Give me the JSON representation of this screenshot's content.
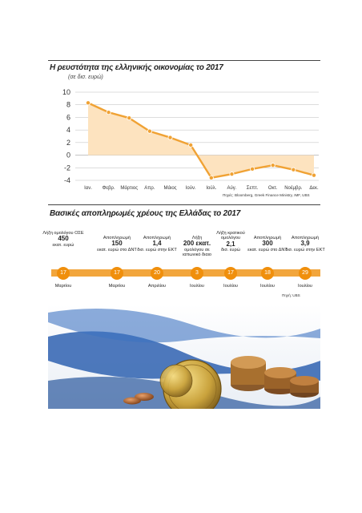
{
  "chart_data": [
    {
      "type": "area",
      "title": "Η ρευστότητα της ελληνικής οικονομίας το 2017",
      "unit": "(σε δισ. ευρώ)",
      "categories": [
        "Ιαν.",
        "Φεβρ.",
        "Μάρτιος",
        "Απρ.",
        "Μάιος",
        "Ιούν.",
        "Ιούλ.",
        "Αύγ.",
        "Σεπτ.",
        "Οκτ.",
        "Νοέμβρ.",
        "Δεκ."
      ],
      "values": [
        8.3,
        6.8,
        5.9,
        3.8,
        2.8,
        1.6,
        -3.6,
        -3.0,
        -2.2,
        -1.6,
        -2.3,
        -3.2
      ],
      "yticks": [
        "10",
        "8",
        "6",
        "4",
        "2",
        "0",
        "-2",
        "-4"
      ],
      "ylim": [
        -4,
        10
      ],
      "grid": true,
      "source": "Πηγές: Bloomberg, Greek Finance Ministry, IMF, UBS"
    },
    {
      "type": "timeline",
      "title": "Βασικές αποπληρωμές χρέους της Ελλάδας το 2017",
      "events": [
        {
          "text": "Λήξη ομολόγου ΟΣΕ",
          "amount": "450",
          "unit": "εκατ. ευρώ",
          "day": "17",
          "month": "Μαρτίου"
        },
        {
          "text": "Αποπληρωμή",
          "amount": "150",
          "unit": "εκατ. ευρώ στο ΔΝΤ",
          "day": "17",
          "month": "Μαρτίου"
        },
        {
          "text": "Αποπληρωμή",
          "amount": "1,4",
          "unit": "δισ. ευρώ στην ΕΚΤ",
          "day": "20",
          "month": "Απριλίου"
        },
        {
          "text": "Λήξη",
          "amount": "200 εκατ.",
          "unit": "ομολόγου σε ιαπωνικό διαιο",
          "day": "3",
          "month": "Ιουλίου"
        },
        {
          "text": "Λήξη κρατικού ομολόγου",
          "amount": "2,1",
          "unit": "δισ. ευρώ",
          "day": "17",
          "month": "Ιουλίου"
        },
        {
          "text": "Αποπληρωμή",
          "amount": "300",
          "unit": "εκατ. ευρώ στο ΔΝΤ",
          "day": "18",
          "month": "Ιουλίου"
        },
        {
          "text": "Αποπληρωμή",
          "amount": "3,9",
          "unit": "δισ. ευρώ στην ΕΚΤ",
          "day": "29",
          "month": "Ιουλίου"
        }
      ],
      "source": "Πηγή: UBS"
    }
  ],
  "colors": {
    "line": "#f0a234",
    "area": "#fde3bf",
    "timeline_bar": "#f2a63d",
    "circle": "#f08f0c",
    "grid": "#bbbbbb"
  }
}
